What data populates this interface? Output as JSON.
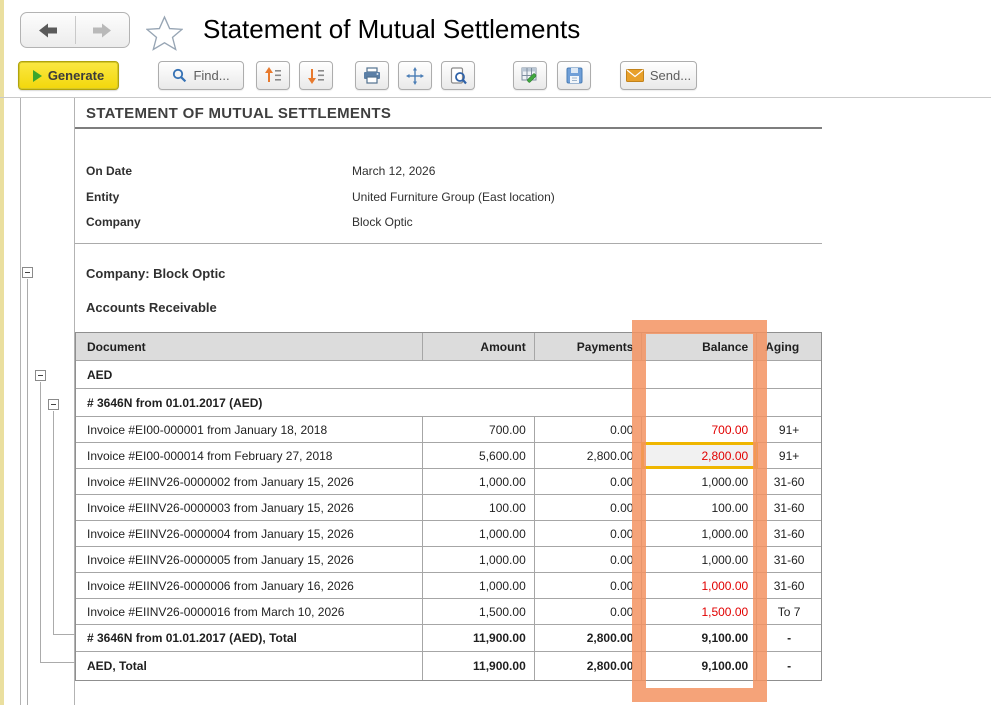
{
  "window": {
    "title": "Statement of Mutual Settlements"
  },
  "toolbar": {
    "generate_label": "Generate",
    "find_label": "Find...",
    "send_label": "Send...",
    "icons": {
      "nav_back": "back-arrow",
      "nav_forward": "forward-arrow",
      "favorite": "star-outline",
      "find": "magnifier",
      "collapse": "up-arrow-list",
      "expand": "down-arrow-list",
      "print": "printer",
      "pan": "cross-arrows",
      "preview": "document-magnifier",
      "edit": "table-pencil",
      "save": "floppy-disk",
      "send": "envelope"
    }
  },
  "report": {
    "title": "STATEMENT OF MUTUAL SETTLEMENTS",
    "fields": [
      {
        "label": "On Date",
        "value": "March 12, 2026"
      },
      {
        "label": "Entity",
        "value": "United Furniture Group (East location)"
      },
      {
        "label": "Company",
        "value": "Block Optic"
      }
    ],
    "group_header": "Company: Block Optic",
    "section_header": "Accounts Receivable"
  },
  "table": {
    "columns": [
      "Document",
      "Amount",
      "Payments",
      "Balance",
      "Aging"
    ],
    "rows": [
      {
        "type": "group",
        "level": 1,
        "label": "AED"
      },
      {
        "type": "group",
        "level": 2,
        "label": "# 3646N from 01.01.2017 (AED)"
      },
      {
        "type": "data",
        "document": "Invoice #EI00-000001 from January 18, 2018",
        "amount": "700.00",
        "payments": "0.00",
        "balance": "700.00",
        "balance_red": true,
        "selected": false,
        "aging": "91+"
      },
      {
        "type": "data",
        "document": "Invoice #EI00-000014 from February 27, 2018",
        "amount": "5,600.00",
        "payments": "2,800.00",
        "balance": "2,800.00",
        "balance_red": true,
        "selected": true,
        "aging": "91+"
      },
      {
        "type": "data",
        "document": "Invoice #EIINV26-0000002 from January 15, 2026",
        "amount": "1,000.00",
        "payments": "0.00",
        "balance": "1,000.00",
        "balance_red": false,
        "selected": false,
        "aging": "31-60"
      },
      {
        "type": "data",
        "document": "Invoice #EIINV26-0000003 from January 15, 2026",
        "amount": "100.00",
        "payments": "0.00",
        "balance": "100.00",
        "balance_red": false,
        "selected": false,
        "aging": "31-60"
      },
      {
        "type": "data",
        "document": "Invoice #EIINV26-0000004 from January 15, 2026",
        "amount": "1,000.00",
        "payments": "0.00",
        "balance": "1,000.00",
        "balance_red": false,
        "selected": false,
        "aging": "31-60"
      },
      {
        "type": "data",
        "document": "Invoice #EIINV26-0000005 from January 15, 2026",
        "amount": "1,000.00",
        "payments": "0.00",
        "balance": "1,000.00",
        "balance_red": false,
        "selected": false,
        "aging": "31-60"
      },
      {
        "type": "data",
        "document": "Invoice #EIINV26-0000006 from January 16, 2026",
        "amount": "1,000.00",
        "payments": "0.00",
        "balance": "1,000.00",
        "balance_red": true,
        "selected": false,
        "aging": "31-60"
      },
      {
        "type": "data",
        "document": "Invoice #EIINV26-0000016 from March 10, 2026",
        "amount": "1,500.00",
        "payments": "0.00",
        "balance": "1,500.00",
        "balance_red": true,
        "selected": false,
        "aging": "To 7"
      },
      {
        "type": "total",
        "level": 2,
        "document": "# 3646N from 01.01.2017 (AED), Total",
        "amount": "11,900.00",
        "payments": "2,800.00",
        "balance": "9,100.00",
        "aging": "-"
      },
      {
        "type": "total",
        "level": 1,
        "document": "AED, Total",
        "amount": "11,900.00",
        "payments": "2,800.00",
        "balance": "9,100.00",
        "aging": "-"
      }
    ]
  },
  "colors": {
    "highlight_orange": "#f39361",
    "selected_cell_border": "#efb600",
    "negative_red": "#e10000",
    "generate_yellow": "#f5dd1e"
  }
}
